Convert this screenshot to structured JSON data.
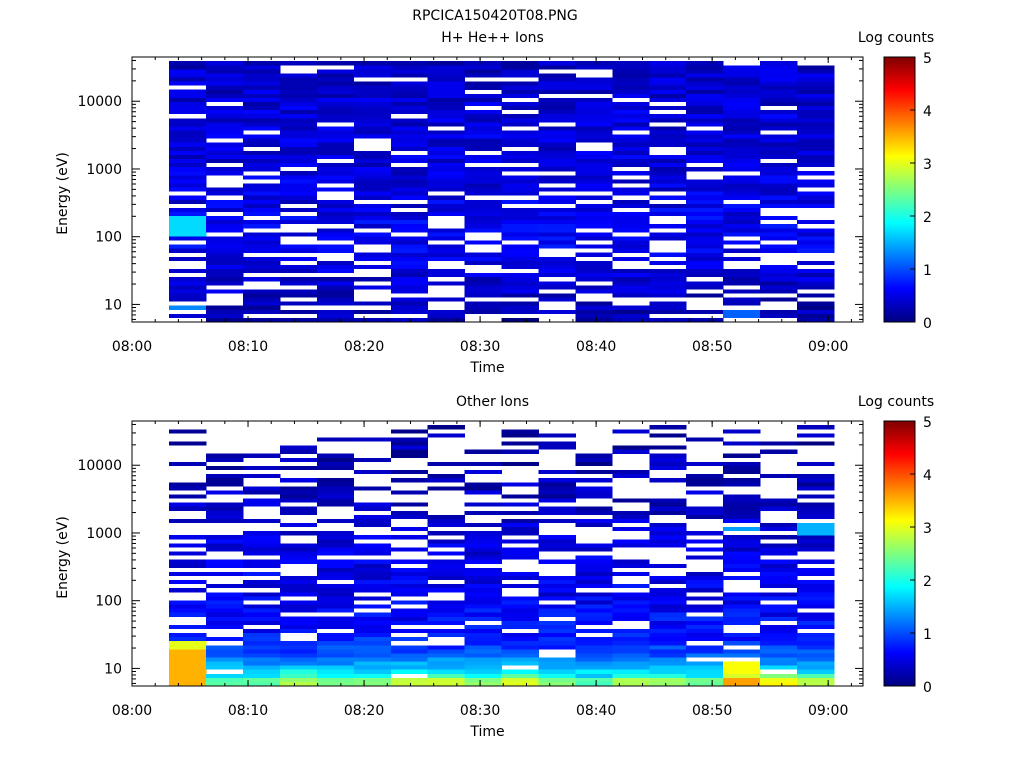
{
  "page": {
    "title": "RPCICA150420T08.PNG"
  },
  "colorbar": {
    "label": "Log counts",
    "ticks": [
      "0",
      "1",
      "2",
      "3",
      "4",
      "5"
    ],
    "range": [
      0,
      5
    ],
    "colormap": [
      "#00007f",
      "#0000ff",
      "#007fff",
      "#00ffff",
      "#7fff7f",
      "#ffff00",
      "#ff7f00",
      "#ff0000",
      "#7f0000"
    ]
  },
  "chart_data": [
    {
      "type": "heatmap",
      "title": "H+ He++ Ions",
      "xlabel": "Time",
      "ylabel": "Energy (eV)",
      "x_ticks": [
        "08:00",
        "08:10",
        "08:20",
        "08:30",
        "08:40",
        "08:50",
        "09:00"
      ],
      "xlim": [
        "08:00",
        "09:03"
      ],
      "y_scale": "log",
      "y_ticks": [
        "10",
        "100",
        "1000",
        "10000"
      ],
      "ylim": [
        5.5,
        45000
      ],
      "time_bins_start_min": 3.2,
      "time_bins_end_min": 60.5,
      "n_time_bins": 18,
      "n_energy_bins": 64,
      "seed": 7,
      "profile": [
        [
          0.0,
          0.2
        ],
        [
          0.15,
          0.4
        ],
        [
          0.3,
          0.6
        ],
        [
          0.45,
          0.5
        ],
        [
          0.6,
          0.45
        ],
        [
          0.75,
          0.45
        ],
        [
          1.0,
          0.35
        ]
      ],
      "gap_prob": [
        [
          0.0,
          0.25
        ],
        [
          0.25,
          0.3
        ],
        [
          0.5,
          0.15
        ],
        [
          1.0,
          0.12
        ]
      ],
      "highlights": [
        {
          "t": 0,
          "e_from": 0.32,
          "e_to": 0.4,
          "value": 1.7
        },
        {
          "t": 0,
          "e_from": 0.02,
          "e_to": 0.06,
          "value": 1.3
        },
        {
          "t": 15,
          "e_from": 0.0,
          "e_to": 0.06,
          "value": 1.1
        }
      ]
    },
    {
      "type": "heatmap",
      "title": "Other Ions",
      "xlabel": "Time",
      "ylabel": "Energy (eV)",
      "x_ticks": [
        "08:00",
        "08:10",
        "08:20",
        "08:30",
        "08:40",
        "08:50",
        "09:00"
      ],
      "xlim": [
        "08:00",
        "09:03"
      ],
      "y_scale": "log",
      "y_ticks": [
        "10",
        "100",
        "1000",
        "10000"
      ],
      "ylim": [
        5.5,
        45000
      ],
      "time_bins_start_min": 3.2,
      "time_bins_end_min": 60.5,
      "n_time_bins": 18,
      "n_energy_bins": 64,
      "seed": 21,
      "profile": [
        [
          0.0,
          2.6
        ],
        [
          0.06,
          1.6
        ],
        [
          0.12,
          1.0
        ],
        [
          0.2,
          0.7
        ],
        [
          0.35,
          0.55
        ],
        [
          0.55,
          0.45
        ],
        [
          0.75,
          0.3
        ],
        [
          1.0,
          0.2
        ]
      ],
      "gap_prob": [
        [
          0.0,
          0.03
        ],
        [
          0.2,
          0.2
        ],
        [
          0.5,
          0.35
        ],
        [
          0.8,
          0.55
        ],
        [
          1.0,
          0.75
        ]
      ],
      "lowest_row_values": [
        3.5,
        2.3,
        2.3,
        2.7,
        2.4,
        2.5,
        2.8,
        2.9,
        2.5,
        3.0,
        2.5,
        2.2,
        2.7,
        2.7,
        2.4,
        3.5,
        3.1,
        2.8
      ],
      "highlights": [
        {
          "t": 0,
          "e_from": 0.0,
          "e_to": 0.13,
          "value": 3.5
        },
        {
          "t": 0,
          "e_from": 0.13,
          "e_to": 0.16,
          "value": 3.0
        },
        {
          "t": 15,
          "e_from": 0.04,
          "e_to": 0.1,
          "value": 3.1
        },
        {
          "t": 17,
          "e_from": 0.58,
          "e_to": 0.63,
          "value": 1.5
        },
        {
          "t": 15,
          "e_from": 0.6,
          "e_to": 0.63,
          "value": 1.4
        }
      ]
    }
  ]
}
